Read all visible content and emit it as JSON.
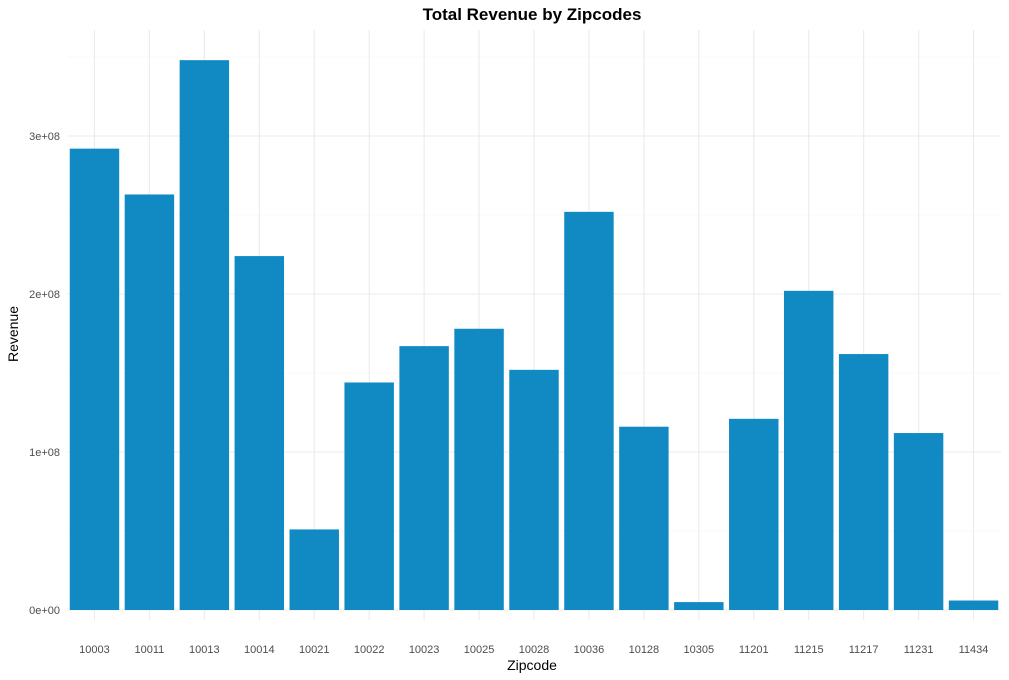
{
  "chart_data": {
    "type": "bar",
    "title": "Total Revenue by Zipcodes",
    "xlabel": "Zipcode",
    "ylabel": "Revenue",
    "categories": [
      "10003",
      "10011",
      "10013",
      "10014",
      "10021",
      "10022",
      "10023",
      "10025",
      "10028",
      "10036",
      "10128",
      "10305",
      "11201",
      "11215",
      "11217",
      "11231",
      "11434"
    ],
    "values": [
      292000000,
      263000000,
      348000000,
      224000000,
      51000000,
      144000000,
      167000000,
      178000000,
      152000000,
      252000000,
      116000000,
      5000000,
      121000000,
      202000000,
      162000000,
      112000000,
      6000000
    ],
    "ylim": [
      0,
      348000000
    ],
    "yticks": [
      0,
      100000000,
      200000000,
      300000000
    ],
    "ytick_labels": [
      "0e+00",
      "1e+08",
      "2e+08",
      "3e+08"
    ],
    "bar_color": "#118ac4",
    "grid": true,
    "legend": "none"
  }
}
